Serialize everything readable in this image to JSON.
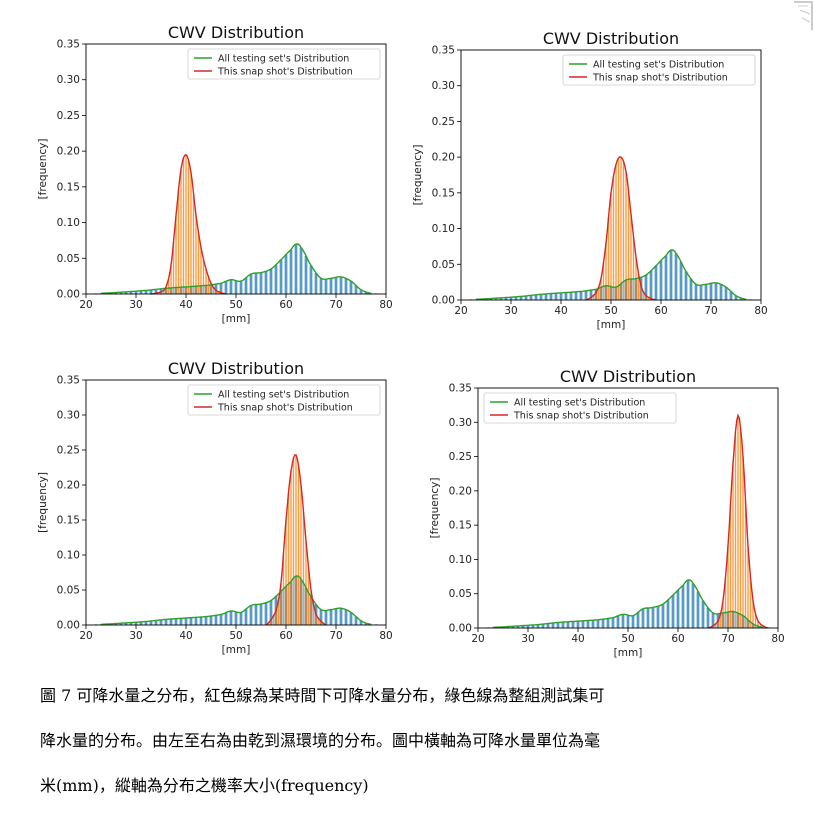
{
  "figure": {
    "caption_lines": [
      "圖 7  可降水量之分布，紅色線為某時間下可降水量分布，綠色線為整組測試集可",
      "降水量的分布。由左至右為由乾到濕環境的分布。圖中橫軸為可降水量單位為毫",
      "米(mm)，縱軸為分布之機率大小(frequency)"
    ]
  },
  "colors": {
    "all_line": "#2ca02c",
    "snap_line": "#d62728",
    "all_bars": "#1f77b4",
    "snap_bars": "#ff7f0e"
  },
  "chart_data": [
    {
      "type": "line",
      "title": "CWV Distribution",
      "xlabel": "[mm]",
      "ylabel": "[frequency]",
      "xlim": [
        20,
        80
      ],
      "ylim": [
        0,
        0.35
      ],
      "xticks": [
        "20",
        "30",
        "40",
        "50",
        "60",
        "70",
        "80"
      ],
      "yticks": [
        "0.00",
        "0.05",
        "0.10",
        "0.15",
        "0.20",
        "0.25",
        "0.30",
        "0.35"
      ],
      "legend_position": "top-right",
      "series": [
        {
          "name": "All testing set's Distribution",
          "x": [
            23,
            28,
            32,
            36,
            40,
            44,
            47,
            49,
            51,
            53,
            55,
            57,
            59,
            61,
            62,
            63,
            65,
            67,
            69,
            71,
            73,
            75,
            77
          ],
          "y": [
            0.001,
            0.003,
            0.005,
            0.008,
            0.01,
            0.012,
            0.015,
            0.02,
            0.018,
            0.028,
            0.03,
            0.035,
            0.048,
            0.062,
            0.07,
            0.065,
            0.04,
            0.022,
            0.022,
            0.024,
            0.018,
            0.006,
            0.001
          ]
        },
        {
          "name": "This snap shot's Distribution",
          "x": [
            33,
            35,
            36,
            37,
            38,
            39,
            40,
            41,
            42,
            43,
            44,
            45,
            46,
            48
          ],
          "y": [
            0.0,
            0.003,
            0.01,
            0.04,
            0.11,
            0.175,
            0.195,
            0.17,
            0.11,
            0.065,
            0.035,
            0.015,
            0.005,
            0.0
          ]
        }
      ]
    },
    {
      "type": "line",
      "title": "CWV Distribution",
      "xlabel": "[mm]",
      "ylabel": "[frequency]",
      "xlim": [
        20,
        80
      ],
      "ylim": [
        0,
        0.35
      ],
      "xticks": [
        "20",
        "30",
        "40",
        "50",
        "60",
        "70",
        "80"
      ],
      "yticks": [
        "0.00",
        "0.05",
        "0.10",
        "0.15",
        "0.20",
        "0.25",
        "0.30",
        "0.35"
      ],
      "legend_position": "top-right",
      "series": [
        {
          "name": "All testing set's Distribution",
          "x": [
            23,
            28,
            32,
            36,
            40,
            44,
            47,
            49,
            51,
            53,
            55,
            57,
            59,
            61,
            62,
            63,
            65,
            67,
            69,
            71,
            73,
            75,
            77
          ],
          "y": [
            0.001,
            0.003,
            0.005,
            0.008,
            0.01,
            0.012,
            0.015,
            0.02,
            0.018,
            0.028,
            0.03,
            0.035,
            0.048,
            0.062,
            0.07,
            0.065,
            0.04,
            0.022,
            0.022,
            0.024,
            0.018,
            0.006,
            0.001
          ]
        },
        {
          "name": "This snap shot's Distribution",
          "x": [
            45,
            47,
            48,
            49,
            50,
            51,
            52,
            53,
            54,
            55,
            56,
            57,
            59
          ],
          "y": [
            0.0,
            0.01,
            0.03,
            0.08,
            0.15,
            0.19,
            0.2,
            0.18,
            0.12,
            0.06,
            0.02,
            0.006,
            0.0
          ]
        }
      ]
    },
    {
      "type": "line",
      "title": "CWV Distribution",
      "xlabel": "[mm]",
      "ylabel": "[frequency]",
      "xlim": [
        20,
        80
      ],
      "ylim": [
        0,
        0.35
      ],
      "xticks": [
        "20",
        "30",
        "40",
        "50",
        "60",
        "70",
        "80"
      ],
      "yticks": [
        "0.00",
        "0.05",
        "0.10",
        "0.15",
        "0.20",
        "0.25",
        "0.30",
        "0.35"
      ],
      "legend_position": "top-right",
      "series": [
        {
          "name": "All testing set's Distribution",
          "x": [
            23,
            28,
            32,
            36,
            40,
            44,
            47,
            49,
            51,
            53,
            55,
            57,
            59,
            61,
            62,
            63,
            65,
            67,
            69,
            71,
            73,
            75,
            77
          ],
          "y": [
            0.001,
            0.003,
            0.005,
            0.008,
            0.01,
            0.012,
            0.015,
            0.02,
            0.018,
            0.028,
            0.03,
            0.035,
            0.048,
            0.062,
            0.07,
            0.065,
            0.04,
            0.022,
            0.022,
            0.024,
            0.018,
            0.006,
            0.001
          ]
        },
        {
          "name": "This snap shot's Distribution",
          "x": [
            56,
            58,
            59,
            60,
            61,
            62,
            63,
            64,
            65,
            66,
            68
          ],
          "y": [
            0.0,
            0.02,
            0.06,
            0.15,
            0.22,
            0.243,
            0.2,
            0.12,
            0.05,
            0.015,
            0.0
          ]
        }
      ]
    },
    {
      "type": "line",
      "title": "CWV Distribution",
      "xlabel": "[mm]",
      "ylabel": "[frequency]",
      "xlim": [
        20,
        80
      ],
      "ylim": [
        0,
        0.35
      ],
      "xticks": [
        "20",
        "30",
        "40",
        "50",
        "60",
        "70",
        "80"
      ],
      "yticks": [
        "0.00",
        "0.05",
        "0.10",
        "0.15",
        "0.20",
        "0.25",
        "0.30",
        "0.35"
      ],
      "legend_position": "top-left",
      "series": [
        {
          "name": "All testing set's Distribution",
          "x": [
            23,
            28,
            32,
            36,
            40,
            44,
            47,
            49,
            51,
            53,
            55,
            57,
            59,
            61,
            62,
            63,
            65,
            67,
            69,
            71,
            73,
            75,
            77
          ],
          "y": [
            0.001,
            0.003,
            0.005,
            0.008,
            0.01,
            0.012,
            0.015,
            0.02,
            0.018,
            0.028,
            0.03,
            0.035,
            0.048,
            0.062,
            0.07,
            0.065,
            0.04,
            0.022,
            0.022,
            0.024,
            0.018,
            0.006,
            0.001
          ]
        },
        {
          "name": "This snap shot's Distribution",
          "x": [
            66,
            68,
            69,
            70,
            71,
            72,
            73,
            74,
            75,
            76,
            78
          ],
          "y": [
            0.0,
            0.01,
            0.04,
            0.12,
            0.24,
            0.31,
            0.25,
            0.12,
            0.04,
            0.01,
            0.0
          ]
        }
      ]
    }
  ]
}
